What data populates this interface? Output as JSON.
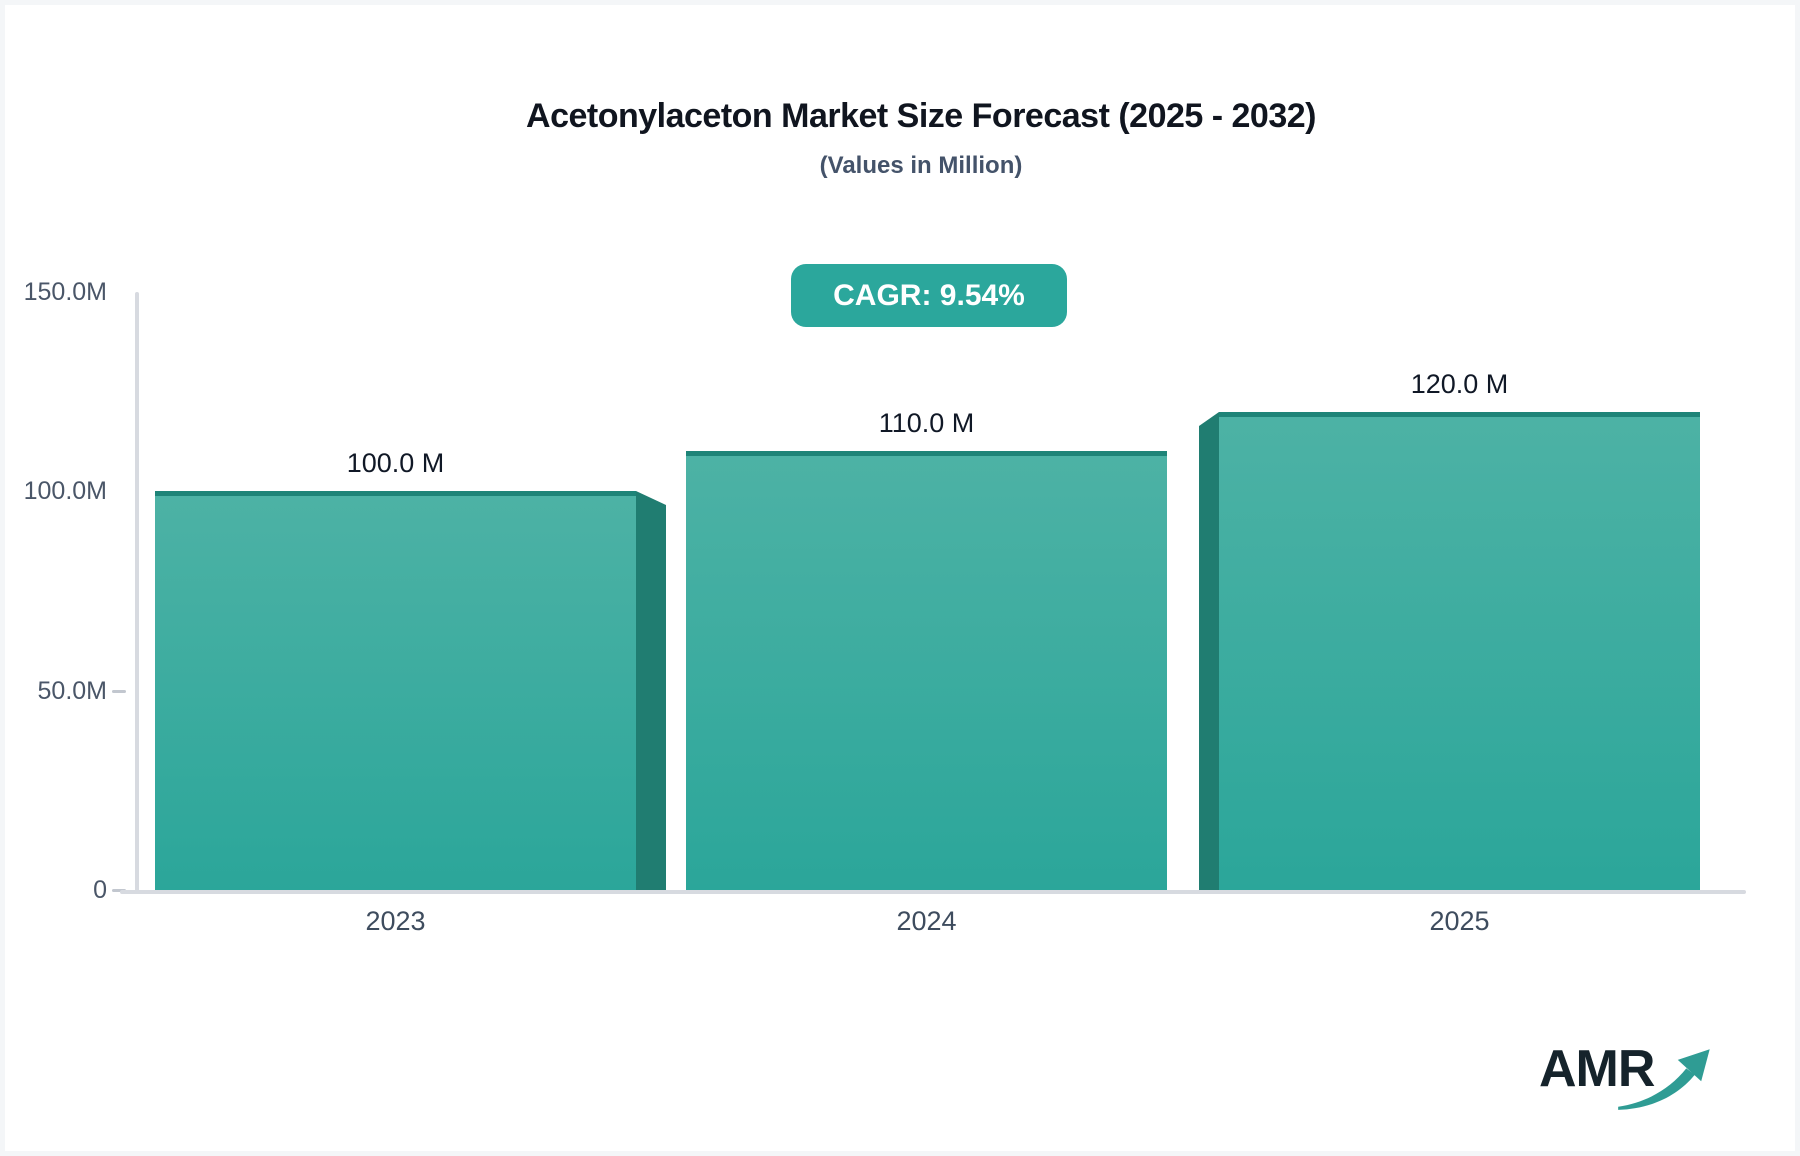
{
  "header": {
    "title": "Acetonylaceton Market Size Forecast (2025 - 2032)",
    "subtitle": "(Values in Million)"
  },
  "badge": {
    "label": "CAGR: 9.54%",
    "background": "#2ba79c",
    "text_color": "#ffffff"
  },
  "chart_data": {
    "type": "bar",
    "title": "Acetonylaceton Market Size Forecast (2025 - 2032)",
    "subtitle": "(Values in Million)",
    "unit": "Million",
    "categories": [
      "2023",
      "2024",
      "2025"
    ],
    "values": [
      100.0,
      110.0,
      120.0
    ],
    "value_labels": [
      "100.0 M",
      "110.0 M",
      "120.0 M"
    ],
    "ylim": [
      0,
      150
    ],
    "ytick_values": [
      150,
      100,
      50,
      0
    ],
    "ytick_labels": [
      "150.0M",
      "100.0M",
      "50.0M",
      "0"
    ],
    "ytick_dash": [
      false,
      false,
      true,
      true
    ],
    "grid": false,
    "legend": false,
    "bar_3d_sides": [
      "right",
      "none",
      "left"
    ],
    "colors": {
      "bar_face_top": "#4db2a5",
      "bar_face_bottom": "#2ba69a",
      "bar_top_edge": "#1e8478",
      "bar_side": "#207d71",
      "axis_line": "#d7dae0"
    }
  },
  "logo": {
    "text": "AMR",
    "arrow_icon": "trend-up-arrow",
    "text_color": "#15232b",
    "arrow_color": "#2f9c94"
  }
}
